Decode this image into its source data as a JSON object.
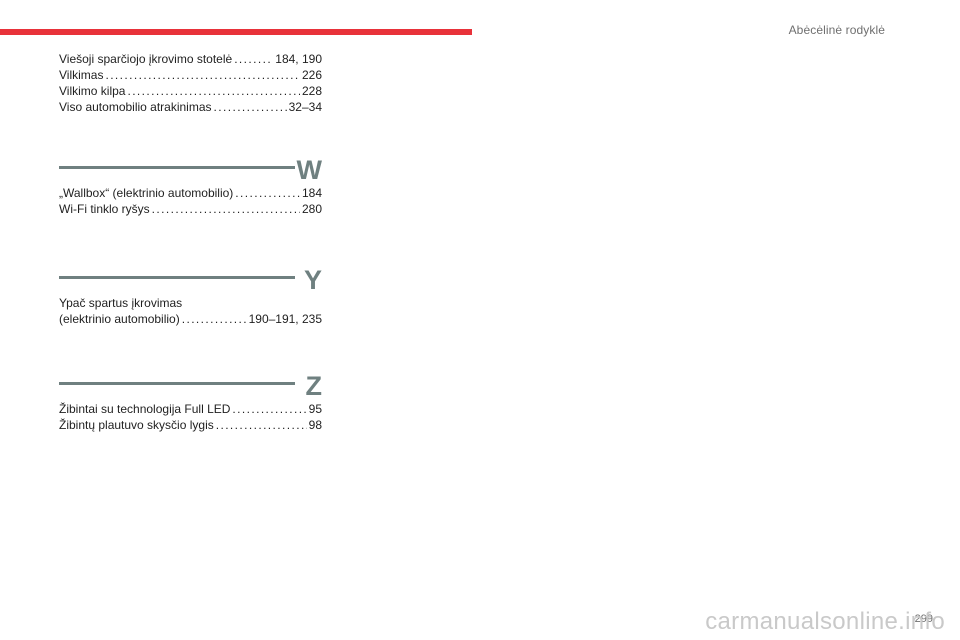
{
  "header": {
    "title": "Abėcėlinė rodyklė"
  },
  "sections": {
    "v": {
      "entries": [
        {
          "label": "Viešoji sparčiojo įkrovimo stotelė",
          "pages": "184, 190"
        },
        {
          "label": "Vilkimas",
          "pages": "226"
        },
        {
          "label": "Vilkimo kilpa",
          "pages": "228"
        },
        {
          "label": "Viso automobilio atrakinimas",
          "pages": "32–34"
        }
      ]
    },
    "w": {
      "letter": "W",
      "entries": [
        {
          "label": "„Wallbox“ (elektrinio automobilio)",
          "pages": "184"
        },
        {
          "label": "Wi-Fi tinklo ryšys",
          "pages": "280"
        }
      ]
    },
    "y": {
      "letter": "Y",
      "entries": [
        {
          "line1": "Ypač spartus įkrovimas",
          "label": "(elektrinio automobilio)",
          "pages": "190–191, 235"
        }
      ]
    },
    "z": {
      "letter": "Z",
      "entries": [
        {
          "label": "Žibintai su technologija Full LED",
          "pages": "95"
        },
        {
          "label": "Žibintų plautuvo skysčio lygis",
          "pages": "98"
        }
      ]
    }
  },
  "footer": {
    "page_number": "299",
    "watermark": "carmanualsonline.info"
  }
}
